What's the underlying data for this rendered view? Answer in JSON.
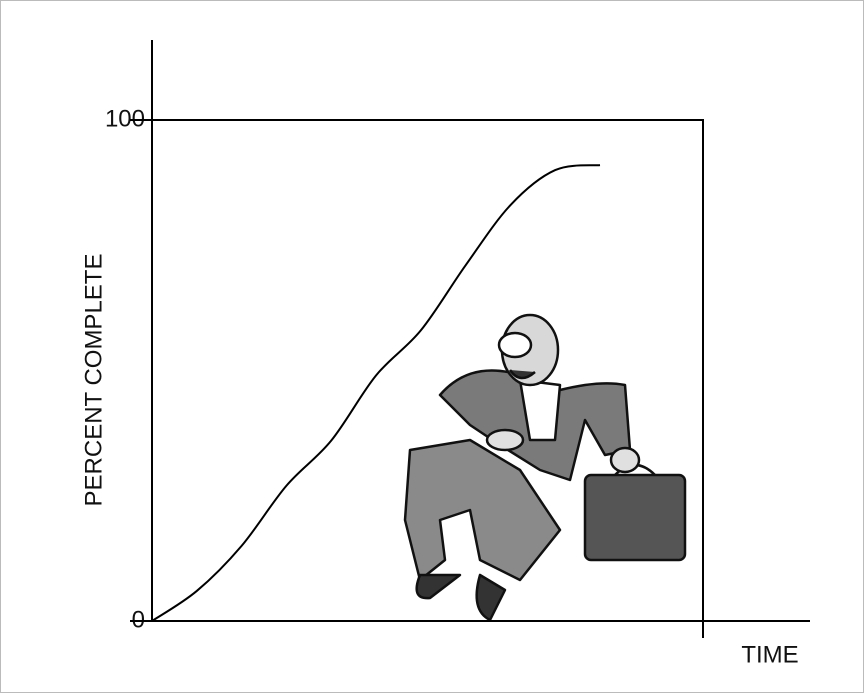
{
  "chart_data": {
    "type": "line",
    "y_label": "PERCENT COMPLETE",
    "x_label": "TIME",
    "categories": [
      null,
      null,
      null,
      null,
      null,
      null,
      null,
      null,
      null,
      null,
      null
    ],
    "values": [
      0,
      6,
      15,
      27,
      36,
      49,
      58,
      71,
      83,
      90,
      91
    ],
    "color": "#000000",
    "ylim": [
      0,
      100
    ],
    "yticks": [
      0,
      100
    ]
  }
}
